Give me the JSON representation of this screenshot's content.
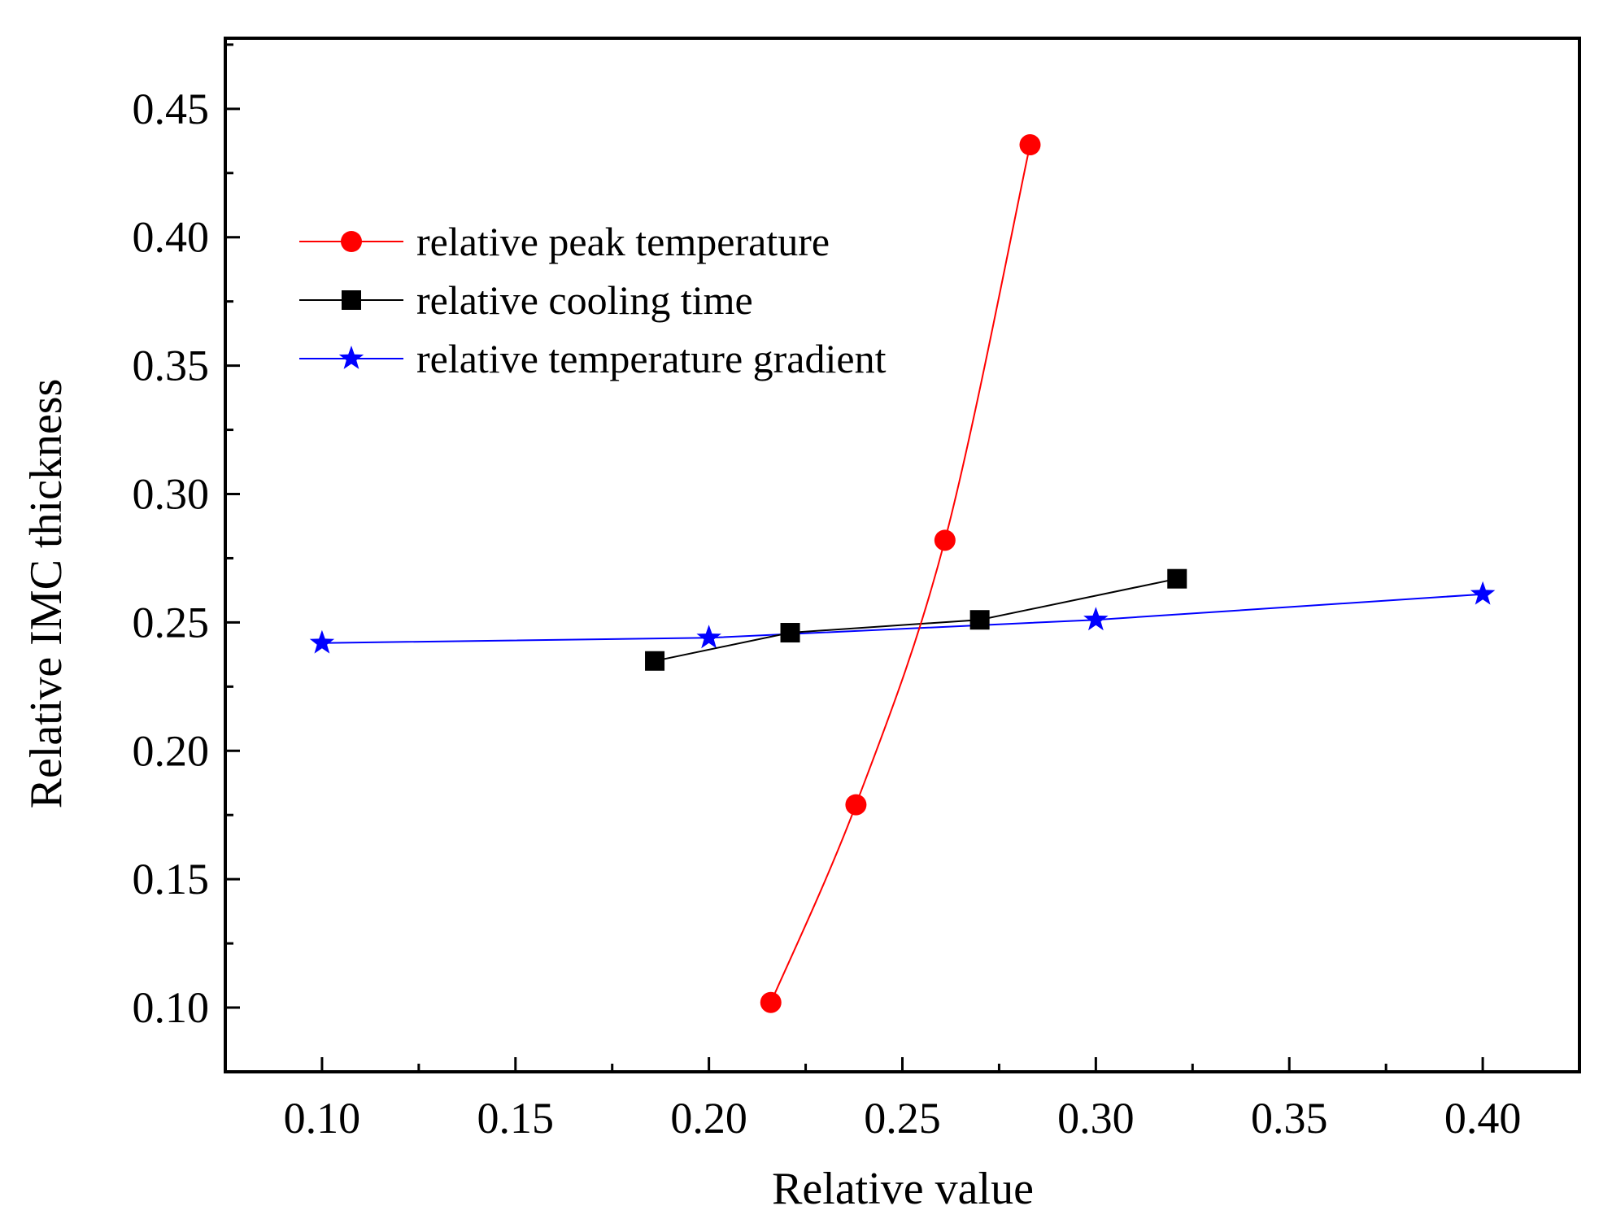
{
  "chart_data": {
    "type": "line",
    "title": "",
    "xlabel": "Relative value",
    "ylabel": "Relative IMC thickness",
    "xlim": [
      0.075,
      0.425
    ],
    "ylim": [
      0.075,
      0.4775
    ],
    "xticks": [
      0.1,
      0.15,
      0.2,
      0.25,
      0.3,
      0.35,
      0.4
    ],
    "xtick_labels": [
      "0.10",
      "0.15",
      "0.20",
      "0.25",
      "0.30",
      "0.35",
      "0.40"
    ],
    "yticks": [
      0.1,
      0.15,
      0.2,
      0.25,
      0.3,
      0.35,
      0.4,
      0.45
    ],
    "ytick_labels": [
      "0.10",
      "0.15",
      "0.20",
      "0.25",
      "0.30",
      "0.35",
      "0.40",
      "0.45"
    ],
    "grid": false,
    "legend_position": "top-left",
    "series": [
      {
        "name": "relative peak temperature",
        "color": "#ff0000",
        "marker": "circle",
        "smooth": true,
        "x": [
          0.216,
          0.238,
          0.261,
          0.283
        ],
        "y": [
          0.102,
          0.179,
          0.282,
          0.436
        ]
      },
      {
        "name": "relative cooling time",
        "color": "#000000",
        "marker": "square",
        "smooth": false,
        "x": [
          0.186,
          0.221,
          0.27,
          0.321
        ],
        "y": [
          0.235,
          0.246,
          0.251,
          0.267
        ]
      },
      {
        "name": "relative temperature gradient",
        "color": "#0000ff",
        "marker": "star",
        "smooth": false,
        "x": [
          0.1,
          0.2,
          0.3,
          0.4
        ],
        "y": [
          0.242,
          0.244,
          0.251,
          0.261
        ]
      }
    ]
  }
}
